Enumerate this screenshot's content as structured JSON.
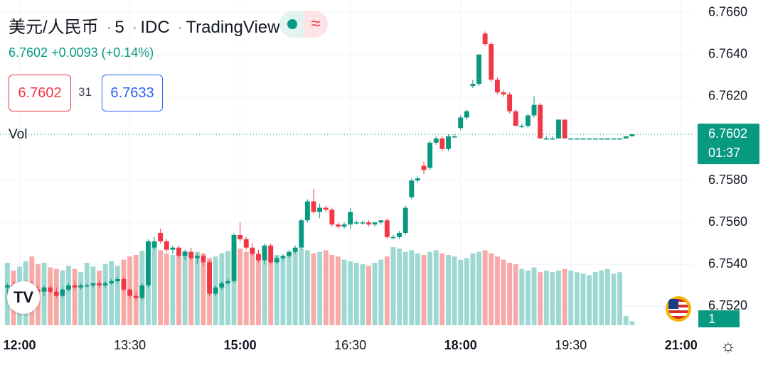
{
  "header": {
    "symbol": "美元/人民币",
    "interval": "5",
    "source": "IDC",
    "provider": "TradingView",
    "last": "6.7602",
    "change": "+0.0093",
    "change_pct": "(+0.14%)",
    "bid": "6.7602",
    "spread": "31",
    "ask": "6.7633",
    "volume_label": "Vol"
  },
  "chart_data": {
    "type": "candlestick",
    "x": [
      710,
      715,
      720,
      725,
      730,
      735,
      740,
      745,
      750,
      755,
      760,
      765,
      770,
      775,
      780,
      785,
      790,
      795,
      800,
      805,
      810,
      815,
      820,
      825,
      830,
      835,
      840,
      845,
      850,
      855,
      860,
      865,
      870,
      875,
      880,
      885,
      890,
      895,
      900,
      905,
      910,
      915,
      920,
      925,
      930,
      935,
      940,
      945,
      950,
      955,
      960,
      965,
      970,
      975,
      980,
      985,
      990,
      995,
      1000,
      1005,
      1010,
      1015,
      1020,
      1025,
      1030,
      1035,
      1040,
      1045,
      1050,
      1055,
      1060,
      1065,
      1070,
      1075,
      1080,
      1085,
      1090,
      1095,
      1100,
      1105,
      1110,
      1115,
      1120,
      1125,
      1130,
      1135,
      1140,
      1145,
      1150,
      1155,
      1160,
      1165,
      1170,
      1175,
      1180,
      1185,
      1190,
      1195,
      1200,
      1205,
      1210,
      1215,
      1220
    ],
    "open": [
      6.7529,
      6.753,
      6.7528,
      6.7529,
      6.753,
      6.7528,
      6.7527,
      6.7529,
      6.7527,
      6.7525,
      6.7528,
      6.753,
      6.7529,
      6.753,
      6.753,
      6.7531,
      6.753,
      6.7531,
      6.7532,
      6.7533,
      6.7528,
      6.7525,
      6.7524,
      6.753,
      6.7548,
      6.7555,
      6.7551,
      6.7547,
      6.7548,
      6.7544,
      6.7546,
      6.7543,
      6.7544,
      6.7541,
      6.7526,
      6.7529,
      6.7531,
      6.7532,
      6.7554,
      6.7552,
      6.7548,
      6.7545,
      6.7542,
      6.7549,
      6.7541,
      6.7543,
      6.7544,
      6.7546,
      6.7548,
      6.7561,
      6.757,
      6.7565,
      6.7567,
      6.7566,
      6.7559,
      6.7558,
      6.7559,
      6.756,
      6.756,
      6.756,
      6.7559,
      6.756,
      6.7561,
      6.7553,
      6.7553,
      6.7555,
      6.7572,
      6.758,
      6.7587,
      6.7586,
      6.7598,
      6.76,
      6.7595,
      6.7601,
      6.7605,
      6.761,
      6.7625,
      6.7626,
      6.765,
      6.7645,
      6.7628,
      6.7622,
      6.7621,
      6.7613,
      6.7606,
      6.7606,
      6.7611,
      6.7616,
      6.76,
      6.76,
      6.76,
      6.7609,
      6.76,
      6.76,
      6.76,
      6.76,
      6.76,
      6.76,
      6.76,
      6.76,
      6.76,
      6.76,
      6.7601
    ],
    "high": [
      6.7531,
      6.7532,
      6.753,
      6.7531,
      6.7532,
      6.753,
      6.753,
      6.753,
      6.7529,
      6.7529,
      6.7531,
      6.7532,
      6.7531,
      6.7531,
      6.7531,
      6.7532,
      6.7532,
      6.7533,
      6.7534,
      6.7534,
      6.7529,
      6.7527,
      6.7531,
      6.7552,
      6.7553,
      6.7557,
      6.7552,
      6.7549,
      6.7549,
      6.7547,
      6.7548,
      6.7545,
      6.7545,
      6.7542,
      6.753,
      6.7532,
      6.7533,
      6.7555,
      6.756,
      6.7553,
      6.755,
      6.7547,
      6.755,
      6.755,
      6.7544,
      6.7545,
      6.7547,
      6.7549,
      6.7562,
      6.7571,
      6.7576,
      6.7569,
      6.7568,
      6.7567,
      6.756,
      6.756,
      6.7567,
      6.7561,
      6.7561,
      6.7561,
      6.756,
      6.7561,
      6.7562,
      6.7554,
      6.7556,
      6.7568,
      6.7581,
      6.7582,
      6.7589,
      6.7599,
      6.7601,
      6.7601,
      6.7602,
      6.7602,
      6.7611,
      6.7614,
      6.7628,
      6.764,
      6.7651,
      6.7646,
      6.7629,
      6.7623,
      6.7622,
      6.7614,
      6.7607,
      6.7612,
      6.762,
      6.7617,
      6.7601,
      6.7601,
      6.7609,
      6.7609,
      6.76,
      6.76,
      6.76,
      6.76,
      6.76,
      6.76,
      6.76,
      6.76,
      6.76,
      6.7601,
      6.7602
    ],
    "low": [
      6.7526,
      6.7527,
      6.7526,
      6.7527,
      6.7527,
      6.7526,
      6.7525,
      6.7526,
      6.7524,
      6.7524,
      6.7527,
      6.7528,
      6.7528,
      6.7529,
      6.7529,
      6.7529,
      6.7529,
      6.753,
      6.7531,
      6.7527,
      6.7524,
      6.7523,
      6.7523,
      6.7529,
      6.7547,
      6.755,
      6.7546,
      6.7545,
      6.7543,
      6.7542,
      6.7542,
      6.754,
      6.7539,
      6.7525,
      6.7525,
      6.7528,
      6.753,
      6.7531,
      6.7551,
      6.7547,
      6.7544,
      6.7541,
      6.754,
      6.754,
      6.754,
      6.7542,
      6.7543,
      6.7545,
      6.7547,
      6.756,
      6.7564,
      6.7562,
      6.7565,
      6.7558,
      6.7557,
      6.7557,
      6.7557,
      6.7559,
      6.7559,
      6.7558,
      6.7558,
      6.7559,
      6.7552,
      6.7552,
      6.7552,
      6.7554,
      6.7571,
      6.7579,
      6.7583,
      6.7585,
      6.7597,
      6.7594,
      6.7594,
      6.76,
      6.7604,
      6.7609,
      6.7624,
      6.7625,
      6.7644,
      6.7627,
      6.7621,
      6.762,
      6.7612,
      6.7606,
      6.7605,
      6.7605,
      6.761,
      6.76,
      6.76,
      6.76,
      6.76,
      6.76,
      6.76,
      6.76,
      6.76,
      6.76,
      6.76,
      6.76,
      6.76,
      6.76,
      6.76,
      6.76,
      6.7601
    ],
    "close": [
      6.753,
      6.7528,
      6.7529,
      6.753,
      6.7528,
      6.7527,
      6.7529,
      6.7527,
      6.7525,
      6.7528,
      6.753,
      6.7529,
      6.753,
      6.753,
      6.7531,
      6.753,
      6.7531,
      6.7532,
      6.7533,
      6.7528,
      6.7525,
      6.7524,
      6.753,
      6.7551,
      6.7551,
      6.7551,
      6.7547,
      6.7548,
      6.7544,
      6.7546,
      6.7543,
      6.7544,
      6.7541,
      6.7526,
      6.7529,
      6.7531,
      6.7532,
      6.7554,
      6.7552,
      6.7548,
      6.7545,
      6.7542,
      6.7549,
      6.7541,
      6.7543,
      6.7544,
      6.7546,
      6.7548,
      6.7561,
      6.757,
      6.7565,
      6.7567,
      6.7566,
      6.7559,
      6.7558,
      6.7559,
      6.7565,
      6.756,
      6.756,
      6.7559,
      6.756,
      6.7561,
      6.7553,
      6.7553,
      6.7555,
      6.7567,
      6.758,
      6.7581,
      6.7585,
      6.7598,
      6.76,
      6.7595,
      6.7601,
      6.7601,
      6.761,
      6.7613,
      6.7626,
      6.764,
      6.7645,
      6.7628,
      6.7622,
      6.7621,
      6.7613,
      6.7606,
      6.7606,
      6.7611,
      6.7616,
      6.76,
      6.76,
      6.76,
      6.7609,
      6.76,
      6.76,
      6.76,
      6.76,
      6.76,
      6.76,
      6.76,
      6.76,
      6.76,
      6.76,
      6.7601,
      6.7602
    ],
    "volume": [
      80,
      70,
      75,
      82,
      88,
      78,
      80,
      74,
      72,
      70,
      76,
      72,
      68,
      80,
      75,
      70,
      78,
      82,
      76,
      84,
      88,
      90,
      95,
      98,
      100,
      96,
      92,
      90,
      88,
      95,
      90,
      94,
      92,
      86,
      88,
      92,
      95,
      100,
      98,
      94,
      92,
      88,
      90,
      86,
      90,
      88,
      92,
      95,
      98,
      96,
      92,
      94,
      96,
      90,
      88,
      84,
      82,
      80,
      78,
      76,
      80,
      84,
      88,
      100,
      98,
      94,
      96,
      92,
      90,
      94,
      96,
      92,
      90,
      88,
      84,
      86,
      92,
      94,
      96,
      92,
      88,
      84,
      80,
      78,
      72,
      70,
      74,
      68,
      70,
      68,
      70,
      72,
      70,
      68,
      66,
      64,
      68,
      70,
      72,
      66,
      68,
      12,
      5
    ],
    "xlim": [
      704,
      1270
    ],
    "xticks": [
      {
        "value": 720,
        "label": "12:00"
      },
      {
        "value": 810,
        "label": "13:30"
      },
      {
        "value": 900,
        "label": "15:00"
      },
      {
        "value": 990,
        "label": "16:30"
      },
      {
        "value": 1080,
        "label": "18:00"
      },
      {
        "value": 1170,
        "label": "19:30"
      },
      {
        "value": 1260,
        "label": "21:00"
      }
    ],
    "ylim": [
      6.7511,
      6.7666
    ],
    "yticks": [
      {
        "value": 6.752,
        "label": "6.7520"
      },
      {
        "value": 6.754,
        "label": "6.7540"
      },
      {
        "value": 6.756,
        "label": "6.7560"
      },
      {
        "value": 6.758,
        "label": "6.7580"
      },
      {
        "value": 6.762,
        "label": "6.7620"
      },
      {
        "value": 6.764,
        "label": "6.7640"
      },
      {
        "value": 6.766,
        "label": "6.7660"
      }
    ],
    "volume_ylim": [
      0,
      100
    ],
    "grid": true,
    "up_color": "#089981",
    "down_color": "#f23645",
    "volume_up_color": "#9ed8d2",
    "volume_down_color": "#f7aaa8",
    "last_price": {
      "value": 6.7602,
      "label": "6.7602"
    },
    "countdown": "01:37"
  },
  "badge": "1"
}
